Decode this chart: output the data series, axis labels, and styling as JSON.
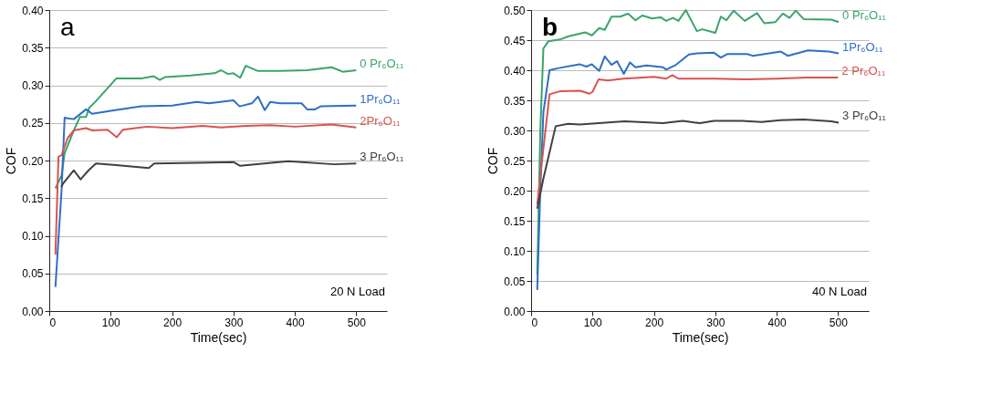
{
  "chart_data": [
    {
      "type": "line",
      "title": "a",
      "xlabel": "Time(sec)",
      "ylabel": "COF",
      "xlim": [
        0,
        550
      ],
      "xticks": [
        0,
        100,
        200,
        300,
        400,
        500
      ],
      "ylim": [
        0,
        0.4
      ],
      "yticks": [
        {
          "value": 0,
          "label": "0.00"
        },
        {
          "value": 0.05,
          "label": "0.05"
        },
        {
          "value": 0.1,
          "label": "0.10"
        },
        {
          "value": 0.15,
          "label": "0.15"
        },
        {
          "value": 0.2,
          "label": "0.20"
        },
        {
          "value": 0.25,
          "label": "0.25"
        },
        {
          "value": 0.3,
          "label": "0.30"
        },
        {
          "value": 0.35,
          "label": "0.35"
        },
        {
          "value": 0.4,
          "label": "0.40"
        }
      ],
      "grid": "y",
      "legend": false,
      "annotations": [
        "20 N Load"
      ],
      "series": [
        {
          "name": "0 Pr₆O₁₁",
          "color": "#3aa46a",
          "x": [
            10,
            20,
            25,
            40,
            50,
            60,
            65,
            75,
            109,
            150,
            170,
            180,
            189,
            230,
            269,
            280,
            291,
            300,
            311,
            320,
            340,
            376,
            420,
            460,
            478,
            500
          ],
          "values": [
            0.163,
            0.18,
            0.21,
            0.24,
            0.258,
            0.258,
            0.27,
            0.278,
            0.309,
            0.309,
            0.312,
            0.307,
            0.311,
            0.313,
            0.316,
            0.32,
            0.315,
            0.316,
            0.31,
            0.326,
            0.319,
            0.319,
            0.32,
            0.324,
            0.318,
            0.32
          ]
        },
        {
          "name": "1Pr₆O₁₁",
          "color": "#2f6fc4",
          "x": [
            10,
            20,
            25,
            30,
            40,
            60,
            70,
            100,
            150,
            200,
            240,
            260,
            300,
            310,
            330,
            340,
            351,
            360,
            376,
            411,
            420,
            433,
            442,
            500
          ],
          "values": [
            0.032,
            0.16,
            0.257,
            0.256,
            0.255,
            0.268,
            0.262,
            0.266,
            0.272,
            0.273,
            0.278,
            0.276,
            0.28,
            0.272,
            0.276,
            0.285,
            0.267,
            0.278,
            0.276,
            0.276,
            0.268,
            0.268,
            0.272,
            0.273
          ]
        },
        {
          "name": "2Pr₆O₁₁",
          "color": "#d9534f",
          "x": [
            10,
            15,
            20,
            30,
            40,
            60,
            70,
            95,
            110,
            120,
            140,
            160,
            200,
            250,
            280,
            320,
            360,
            400,
            460,
            500
          ],
          "values": [
            0.075,
            0.205,
            0.207,
            0.23,
            0.24,
            0.243,
            0.24,
            0.241,
            0.231,
            0.241,
            0.243,
            0.245,
            0.243,
            0.246,
            0.244,
            0.246,
            0.247,
            0.245,
            0.248,
            0.244
          ]
        },
        {
          "name": "3 Pr₆O₁₁",
          "color": "#404040",
          "x": [
            20,
            22,
            40,
            51,
            64,
            76,
            109,
            162,
            171,
            242,
            300,
            311,
            389,
            464,
            500
          ],
          "values": [
            0.165,
            0.169,
            0.187,
            0.175,
            0.187,
            0.196,
            0.194,
            0.19,
            0.196,
            0.197,
            0.198,
            0.193,
            0.199,
            0.195,
            0.196
          ]
        }
      ]
    },
    {
      "type": "line",
      "title": "b",
      "xlabel": "Time(sec)",
      "ylabel": "COF",
      "xlim": [
        0,
        550
      ],
      "xticks": [
        0,
        100,
        200,
        300,
        400,
        500
      ],
      "ylim": [
        0,
        0.5
      ],
      "yticks": [
        {
          "value": 0,
          "label": "0.00"
        },
        {
          "value": 0.05,
          "label": "0.05"
        },
        {
          "value": 0.1,
          "label": "0.10"
        },
        {
          "value": 0.15,
          "label": "0.15"
        },
        {
          "value": 0.2,
          "label": "0.20"
        },
        {
          "value": 0.25,
          "label": "0.25"
        },
        {
          "value": 0.3,
          "label": "0.30"
        },
        {
          "value": 0.35,
          "label": "0.35"
        },
        {
          "value": 0.4,
          "label": "0.40"
        },
        {
          "value": 0.45,
          "label": "0.45"
        },
        {
          "value": 0.5,
          "label": "0.50"
        }
      ],
      "grid": "y",
      "legend": false,
      "annotations": [
        "40 N Load"
      ],
      "series": [
        {
          "name": "0 Pr₆O₁₁",
          "color": "#3aa46a",
          "x": [
            10,
            15,
            20,
            28,
            47,
            60,
            88,
            99,
            111,
            120,
            131,
            145,
            158,
            170,
            181,
            197,
            211,
            220,
            231,
            240,
            252,
            270,
            279,
            300,
            309,
            318,
            330,
            348,
            368,
            380,
            398,
            410,
            421,
            431,
            444,
            489,
            501
          ],
          "values": [
            0.06,
            0.3,
            0.436,
            0.448,
            0.451,
            0.456,
            0.463,
            0.458,
            0.47,
            0.467,
            0.489,
            0.489,
            0.494,
            0.483,
            0.491,
            0.486,
            0.488,
            0.482,
            0.487,
            0.482,
            0.5,
            0.465,
            0.468,
            0.462,
            0.489,
            0.483,
            0.499,
            0.482,
            0.495,
            0.478,
            0.48,
            0.494,
            0.487,
            0.499,
            0.485,
            0.484,
            0.48
          ]
        },
        {
          "name": "1Pr₆O₁₁",
          "color": "#2f6fc4",
          "x": [
            10,
            15,
            20,
            30,
            47,
            79,
            90,
            99,
            111,
            120,
            131,
            140,
            151,
            161,
            170,
            188,
            215,
            220,
            236,
            257,
            270,
            298,
            309,
            320,
            352,
            361,
            407,
            418,
            451,
            485,
            501
          ],
          "values": [
            0.035,
            0.2,
            0.33,
            0.4,
            0.404,
            0.41,
            0.406,
            0.41,
            0.399,
            0.423,
            0.409,
            0.415,
            0.394,
            0.413,
            0.405,
            0.408,
            0.405,
            0.401,
            0.409,
            0.426,
            0.428,
            0.429,
            0.421,
            0.427,
            0.427,
            0.424,
            0.431,
            0.424,
            0.433,
            0.431,
            0.428
          ]
        },
        {
          "name": "2 Pr₆O₁₁",
          "color": "#d9534f",
          "x": [
            10,
            20,
            30,
            47,
            80,
            95,
            100,
            110,
            125,
            150,
            200,
            220,
            230,
            240,
            300,
            350,
            400,
            450,
            500
          ],
          "values": [
            0.177,
            0.27,
            0.36,
            0.365,
            0.366,
            0.361,
            0.364,
            0.385,
            0.383,
            0.386,
            0.389,
            0.386,
            0.392,
            0.386,
            0.386,
            0.385,
            0.386,
            0.388,
            0.388
          ]
        },
        {
          "name": "3 Pr₆O₁₁",
          "color": "#404040",
          "x": [
            10,
            20,
            40,
            60,
            79,
            152,
            215,
            247,
            275,
            298,
            343,
            375,
            407,
            444,
            489,
            501
          ],
          "values": [
            0.17,
            0.22,
            0.307,
            0.311,
            0.31,
            0.315,
            0.312,
            0.316,
            0.312,
            0.316,
            0.316,
            0.314,
            0.317,
            0.318,
            0.315,
            0.313
          ]
        }
      ]
    }
  ]
}
